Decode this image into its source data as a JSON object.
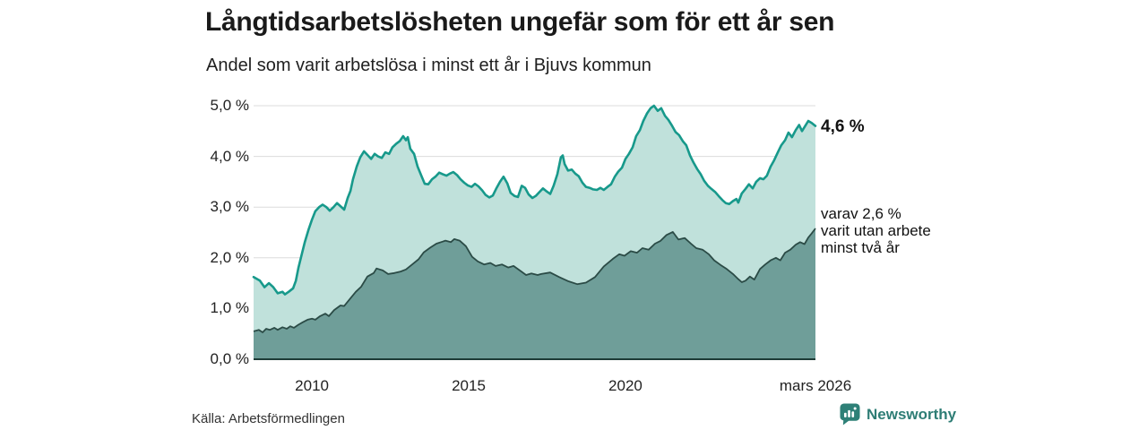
{
  "header": {
    "title": "Långtidsarbetslösheten ungefär som för ett år sen",
    "subtitle": "Andel som varit arbetslösa i minst ett år i Bjuvs kommun"
  },
  "chart_data": {
    "type": "area",
    "title": "Långtidsarbetslösheten ungefär som för ett år sen",
    "subtitle": "Andel som varit arbetslösa i minst ett år i Bjuvs kommun",
    "xlim": [
      2008.14,
      2026.06
    ],
    "ylim": [
      0,
      5
    ],
    "grid": true,
    "colors": {
      "total_line": "#17998b",
      "total_fill": "#c0e1db",
      "two_year_line": "#2b4b46",
      "two_year_fill": "#6f9e99",
      "gridline": "#dcdcdc",
      "axis_line": "#1e3c37"
    },
    "y_ticks": [
      {
        "value": 0,
        "label": "0,0 %"
      },
      {
        "value": 1,
        "label": "1,0 %"
      },
      {
        "value": 2,
        "label": "2,0 %"
      },
      {
        "value": 3,
        "label": "3,0 %"
      },
      {
        "value": 4,
        "label": "4,0 %"
      },
      {
        "value": 5,
        "label": "5,0 %"
      }
    ],
    "x_ticks": [
      {
        "t": 2010,
        "label": "2010"
      },
      {
        "t": 2015,
        "label": "2015"
      },
      {
        "t": 2020,
        "label": "2020"
      },
      {
        "t": 2026.06,
        "label": "mars 2026"
      }
    ],
    "end_labels": {
      "value_label": "4,6 %",
      "annotation_lines": [
        "varav 2,6 %",
        "varit utan arbete",
        "minst två år"
      ]
    },
    "series": [
      {
        "name": "Andel arbetslösa minst ett år",
        "end_value": "4,6 %",
        "points": [
          [
            2008.14,
            1.62
          ],
          [
            2008.34,
            1.55
          ],
          [
            2008.49,
            1.42
          ],
          [
            2008.63,
            1.5
          ],
          [
            2008.77,
            1.42
          ],
          [
            2008.91,
            1.3
          ],
          [
            2009.06,
            1.33
          ],
          [
            2009.14,
            1.28
          ],
          [
            2009.26,
            1.33
          ],
          [
            2009.4,
            1.4
          ],
          [
            2009.49,
            1.55
          ],
          [
            2009.57,
            1.8
          ],
          [
            2009.69,
            2.1
          ],
          [
            2009.77,
            2.3
          ],
          [
            2009.89,
            2.55
          ],
          [
            2010.0,
            2.75
          ],
          [
            2010.11,
            2.92
          ],
          [
            2010.23,
            3.0
          ],
          [
            2010.34,
            3.05
          ],
          [
            2010.46,
            3.0
          ],
          [
            2010.57,
            2.93
          ],
          [
            2010.69,
            3.0
          ],
          [
            2010.8,
            3.08
          ],
          [
            2010.91,
            3.02
          ],
          [
            2011.03,
            2.95
          ],
          [
            2011.14,
            3.18
          ],
          [
            2011.23,
            3.32
          ],
          [
            2011.31,
            3.55
          ],
          [
            2011.43,
            3.8
          ],
          [
            2011.54,
            3.98
          ],
          [
            2011.66,
            4.1
          ],
          [
            2011.77,
            4.03
          ],
          [
            2011.89,
            3.95
          ],
          [
            2012.0,
            4.05
          ],
          [
            2012.11,
            4.0
          ],
          [
            2012.23,
            3.97
          ],
          [
            2012.34,
            4.08
          ],
          [
            2012.46,
            4.05
          ],
          [
            2012.57,
            4.18
          ],
          [
            2012.69,
            4.25
          ],
          [
            2012.8,
            4.3
          ],
          [
            2012.91,
            4.4
          ],
          [
            2013.0,
            4.32
          ],
          [
            2013.06,
            4.38
          ],
          [
            2013.14,
            4.15
          ],
          [
            2013.26,
            4.05
          ],
          [
            2013.37,
            3.8
          ],
          [
            2013.49,
            3.62
          ],
          [
            2013.6,
            3.46
          ],
          [
            2013.71,
            3.45
          ],
          [
            2013.83,
            3.55
          ],
          [
            2013.94,
            3.6
          ],
          [
            2014.06,
            3.68
          ],
          [
            2014.17,
            3.65
          ],
          [
            2014.29,
            3.62
          ],
          [
            2014.4,
            3.66
          ],
          [
            2014.51,
            3.69
          ],
          [
            2014.63,
            3.63
          ],
          [
            2014.74,
            3.55
          ],
          [
            2014.86,
            3.48
          ],
          [
            2014.97,
            3.43
          ],
          [
            2015.09,
            3.4
          ],
          [
            2015.2,
            3.46
          ],
          [
            2015.31,
            3.41
          ],
          [
            2015.43,
            3.33
          ],
          [
            2015.54,
            3.24
          ],
          [
            2015.66,
            3.19
          ],
          [
            2015.77,
            3.23
          ],
          [
            2015.89,
            3.38
          ],
          [
            2016.0,
            3.5
          ],
          [
            2016.11,
            3.6
          ],
          [
            2016.23,
            3.47
          ],
          [
            2016.34,
            3.28
          ],
          [
            2016.46,
            3.22
          ],
          [
            2016.57,
            3.2
          ],
          [
            2016.69,
            3.42
          ],
          [
            2016.8,
            3.38
          ],
          [
            2016.91,
            3.25
          ],
          [
            2017.03,
            3.18
          ],
          [
            2017.14,
            3.22
          ],
          [
            2017.26,
            3.3
          ],
          [
            2017.37,
            3.37
          ],
          [
            2017.49,
            3.31
          ],
          [
            2017.6,
            3.26
          ],
          [
            2017.71,
            3.42
          ],
          [
            2017.83,
            3.65
          ],
          [
            2017.94,
            3.98
          ],
          [
            2018.0,
            4.02
          ],
          [
            2018.06,
            3.85
          ],
          [
            2018.17,
            3.72
          ],
          [
            2018.29,
            3.74
          ],
          [
            2018.4,
            3.66
          ],
          [
            2018.51,
            3.61
          ],
          [
            2018.63,
            3.48
          ],
          [
            2018.74,
            3.4
          ],
          [
            2018.86,
            3.38
          ],
          [
            2018.97,
            3.35
          ],
          [
            2019.09,
            3.34
          ],
          [
            2019.2,
            3.38
          ],
          [
            2019.31,
            3.34
          ],
          [
            2019.43,
            3.4
          ],
          [
            2019.54,
            3.45
          ],
          [
            2019.66,
            3.6
          ],
          [
            2019.77,
            3.7
          ],
          [
            2019.89,
            3.78
          ],
          [
            2020.0,
            3.95
          ],
          [
            2020.11,
            4.05
          ],
          [
            2020.23,
            4.18
          ],
          [
            2020.34,
            4.4
          ],
          [
            2020.46,
            4.52
          ],
          [
            2020.57,
            4.7
          ],
          [
            2020.69,
            4.85
          ],
          [
            2020.8,
            4.95
          ],
          [
            2020.91,
            5.0
          ],
          [
            2021.03,
            4.9
          ],
          [
            2021.14,
            4.95
          ],
          [
            2021.26,
            4.8
          ],
          [
            2021.37,
            4.72
          ],
          [
            2021.49,
            4.6
          ],
          [
            2021.6,
            4.48
          ],
          [
            2021.71,
            4.42
          ],
          [
            2021.83,
            4.3
          ],
          [
            2021.94,
            4.22
          ],
          [
            2022.06,
            4.02
          ],
          [
            2022.17,
            3.88
          ],
          [
            2022.29,
            3.75
          ],
          [
            2022.4,
            3.65
          ],
          [
            2022.51,
            3.52
          ],
          [
            2022.63,
            3.42
          ],
          [
            2022.74,
            3.36
          ],
          [
            2022.86,
            3.3
          ],
          [
            2022.97,
            3.22
          ],
          [
            2023.09,
            3.14
          ],
          [
            2023.2,
            3.08
          ],
          [
            2023.31,
            3.06
          ],
          [
            2023.43,
            3.12
          ],
          [
            2023.54,
            3.16
          ],
          [
            2023.6,
            3.09
          ],
          [
            2023.71,
            3.27
          ],
          [
            2023.83,
            3.36
          ],
          [
            2023.94,
            3.45
          ],
          [
            2024.06,
            3.37
          ],
          [
            2024.17,
            3.5
          ],
          [
            2024.29,
            3.57
          ],
          [
            2024.4,
            3.55
          ],
          [
            2024.51,
            3.62
          ],
          [
            2024.63,
            3.8
          ],
          [
            2024.74,
            3.92
          ],
          [
            2024.86,
            4.08
          ],
          [
            2024.97,
            4.22
          ],
          [
            2025.09,
            4.32
          ],
          [
            2025.2,
            4.47
          ],
          [
            2025.31,
            4.38
          ],
          [
            2025.43,
            4.52
          ],
          [
            2025.54,
            4.62
          ],
          [
            2025.63,
            4.5
          ],
          [
            2025.71,
            4.58
          ],
          [
            2025.83,
            4.7
          ],
          [
            2025.94,
            4.66
          ],
          [
            2026.06,
            4.6
          ]
        ]
      },
      {
        "name": "varav utan arbete minst två år",
        "end_value": "2,6 %",
        "points": [
          [
            2008.14,
            0.55
          ],
          [
            2008.31,
            0.58
          ],
          [
            2008.43,
            0.53
          ],
          [
            2008.54,
            0.6
          ],
          [
            2008.66,
            0.58
          ],
          [
            2008.8,
            0.62
          ],
          [
            2008.91,
            0.58
          ],
          [
            2009.06,
            0.63
          ],
          [
            2009.2,
            0.6
          ],
          [
            2009.31,
            0.65
          ],
          [
            2009.43,
            0.62
          ],
          [
            2009.57,
            0.68
          ],
          [
            2009.71,
            0.73
          ],
          [
            2009.86,
            0.78
          ],
          [
            2010.0,
            0.8
          ],
          [
            2010.11,
            0.78
          ],
          [
            2010.26,
            0.85
          ],
          [
            2010.43,
            0.9
          ],
          [
            2010.54,
            0.85
          ],
          [
            2010.71,
            0.97
          ],
          [
            2010.91,
            1.06
          ],
          [
            2011.03,
            1.05
          ],
          [
            2011.2,
            1.18
          ],
          [
            2011.4,
            1.33
          ],
          [
            2011.57,
            1.43
          ],
          [
            2011.77,
            1.63
          ],
          [
            2011.97,
            1.7
          ],
          [
            2012.06,
            1.79
          ],
          [
            2012.26,
            1.75
          ],
          [
            2012.43,
            1.68
          ],
          [
            2012.63,
            1.7
          ],
          [
            2012.83,
            1.73
          ],
          [
            2013.0,
            1.77
          ],
          [
            2013.2,
            1.87
          ],
          [
            2013.4,
            1.97
          ],
          [
            2013.57,
            2.11
          ],
          [
            2013.77,
            2.2
          ],
          [
            2013.97,
            2.28
          ],
          [
            2014.17,
            2.32
          ],
          [
            2014.26,
            2.34
          ],
          [
            2014.43,
            2.31
          ],
          [
            2014.54,
            2.37
          ],
          [
            2014.71,
            2.34
          ],
          [
            2014.91,
            2.23
          ],
          [
            2015.11,
            2.02
          ],
          [
            2015.29,
            1.93
          ],
          [
            2015.49,
            1.87
          ],
          [
            2015.69,
            1.9
          ],
          [
            2015.86,
            1.84
          ],
          [
            2016.06,
            1.87
          ],
          [
            2016.26,
            1.81
          ],
          [
            2016.43,
            1.84
          ],
          [
            2016.63,
            1.75
          ],
          [
            2016.83,
            1.66
          ],
          [
            2017.0,
            1.69
          ],
          [
            2017.2,
            1.66
          ],
          [
            2017.31,
            1.68
          ],
          [
            2017.6,
            1.71
          ],
          [
            2017.89,
            1.62
          ],
          [
            2018.17,
            1.54
          ],
          [
            2018.46,
            1.48
          ],
          [
            2018.74,
            1.51
          ],
          [
            2019.03,
            1.62
          ],
          [
            2019.31,
            1.83
          ],
          [
            2019.6,
            1.98
          ],
          [
            2019.8,
            2.07
          ],
          [
            2019.97,
            2.04
          ],
          [
            2020.17,
            2.13
          ],
          [
            2020.37,
            2.1
          ],
          [
            2020.54,
            2.19
          ],
          [
            2020.74,
            2.16
          ],
          [
            2020.94,
            2.28
          ],
          [
            2021.11,
            2.33
          ],
          [
            2021.31,
            2.45
          ],
          [
            2021.51,
            2.51
          ],
          [
            2021.69,
            2.36
          ],
          [
            2021.89,
            2.39
          ],
          [
            2022.09,
            2.28
          ],
          [
            2022.26,
            2.19
          ],
          [
            2022.46,
            2.16
          ],
          [
            2022.66,
            2.07
          ],
          [
            2022.83,
            1.95
          ],
          [
            2023.03,
            1.86
          ],
          [
            2023.23,
            1.78
          ],
          [
            2023.43,
            1.68
          ],
          [
            2023.6,
            1.58
          ],
          [
            2023.71,
            1.52
          ],
          [
            2023.83,
            1.55
          ],
          [
            2023.97,
            1.63
          ],
          [
            2024.11,
            1.57
          ],
          [
            2024.29,
            1.78
          ],
          [
            2024.46,
            1.87
          ],
          [
            2024.63,
            1.95
          ],
          [
            2024.8,
            2.0
          ],
          [
            2024.94,
            1.95
          ],
          [
            2025.09,
            2.1
          ],
          [
            2025.26,
            2.16
          ],
          [
            2025.43,
            2.26
          ],
          [
            2025.57,
            2.31
          ],
          [
            2025.71,
            2.27
          ],
          [
            2025.83,
            2.4
          ],
          [
            2025.94,
            2.48
          ],
          [
            2026.06,
            2.58
          ]
        ]
      }
    ]
  },
  "footer": {
    "source": "Källa: Arbetsförmedlingen",
    "brand": "Newsworthy",
    "brand_color": "#2e7d75"
  }
}
